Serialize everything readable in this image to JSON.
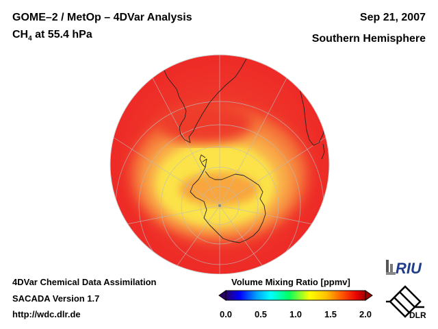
{
  "header": {
    "title_line1": "GOME–2 / MetOp – 4DVar Analysis",
    "species": "CH",
    "species_sub": "4",
    "level": " at 55.4 hPa",
    "date": "Sep 21, 2007",
    "hemisphere": "Southern Hemisphere"
  },
  "footer": {
    "line1": "4DVar Chemical Data Assimilation",
    "line2": "SACADA Version 1.7",
    "line3": "http://wdc.dlr.de"
  },
  "colorbar": {
    "title": "Volume Mixing Ratio [ppmv]",
    "ticks": [
      "0.0",
      "0.5",
      "1.0",
      "1.5",
      "2.0"
    ],
    "min": 0.0,
    "max": 2.0,
    "colors": [
      "#2a0066",
      "#0000ff",
      "#00a0ff",
      "#00ffff",
      "#00ff60",
      "#ffff00",
      "#ffc000",
      "#ff5000",
      "#e80000",
      "#9a0000"
    ]
  },
  "logos": {
    "riu": "RIU",
    "dlr": "DLR"
  },
  "map": {
    "projection": "orthographic-south-polar",
    "field": "CH4 volume mixing ratio",
    "background_value_ppmv": 1.8,
    "polar_ring_value_ppmv": 1.4
  }
}
